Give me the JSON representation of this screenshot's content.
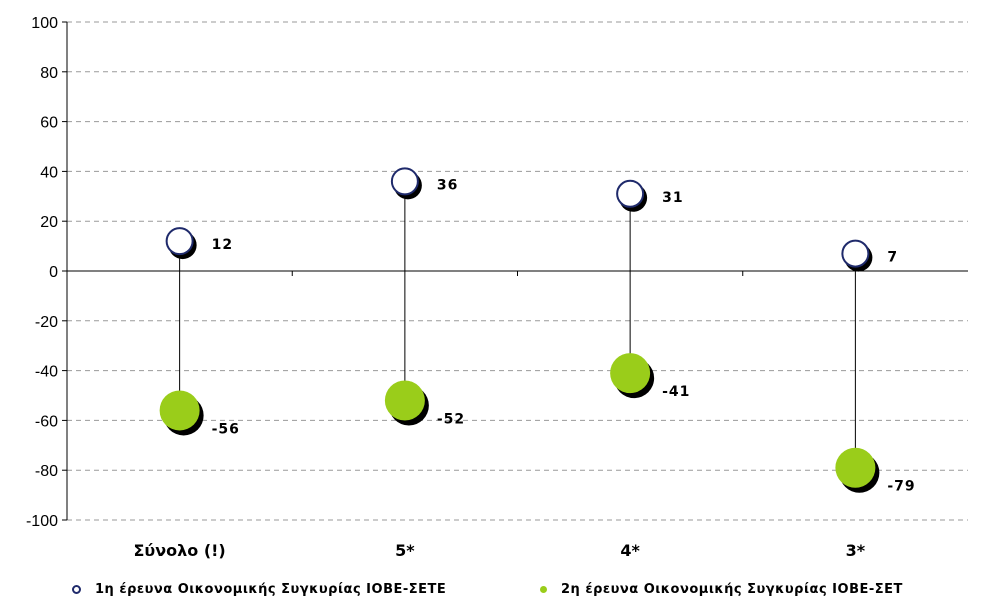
{
  "chart_data": {
    "type": "scatter",
    "categories": [
      "Σύνολο (!)",
      "5*",
      "4*",
      "3*"
    ],
    "series": [
      {
        "name": "1η έρευνα Οικονομικής Συγκυρίας ΙΟΒΕ-ΣΕΤΕ",
        "values": [
          12,
          36,
          31,
          7
        ],
        "labels": [
          "12",
          "36",
          "31",
          "7"
        ],
        "color": "#ffffff",
        "stroke": "#1f2a6b",
        "marker": "hollow-circle"
      },
      {
        "name": "2η έρευνα Οικονομικής Συγκυρίας ΙΟΒΕ-ΣΕΤ",
        "values": [
          -56,
          -52,
          -41,
          -79
        ],
        "labels": [
          "-56",
          "-52",
          "-41",
          "-79"
        ],
        "color": "#9acd1a",
        "marker": "filled-circle"
      }
    ],
    "ylim": [
      -100,
      100
    ],
    "yticks": [
      100,
      80,
      60,
      40,
      20,
      0,
      -20,
      -40,
      -60,
      -80,
      -100
    ],
    "ytick_labels": [
      "100",
      "80",
      "60",
      "40",
      "20",
      "0",
      "-20",
      "-40",
      "-60",
      "-80",
      "-100"
    ],
    "grid": "horizontal-dashed",
    "legend_position": "bottom",
    "connector_lines": true
  },
  "legend": {
    "item1": "1η έρευνα Οικονομικής Συγκυρίας ΙΟΒΕ-ΣΕΤΕ",
    "item2": "2η έρευνα Οικονομικής Συγκυρίας ΙΟΒΕ-ΣΕΤ"
  }
}
